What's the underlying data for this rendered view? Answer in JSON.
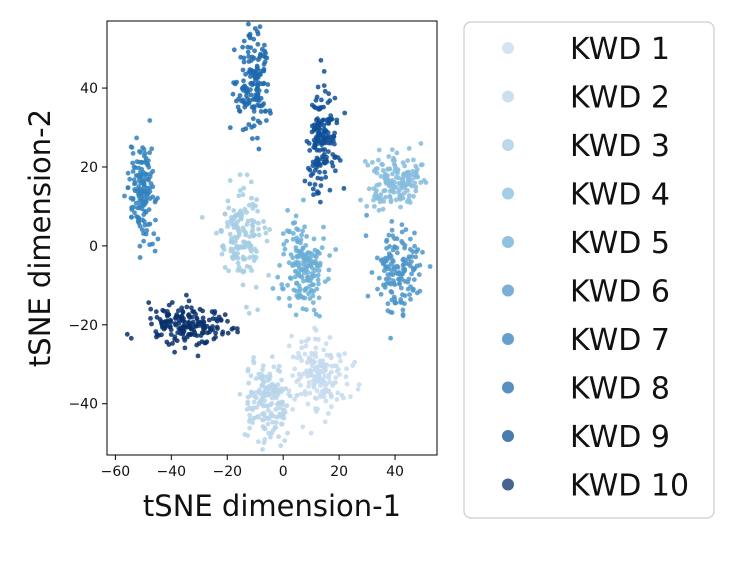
{
  "chart_data": {
    "type": "scatter",
    "title": "",
    "xlabel": "tSNE dimension-1",
    "ylabel": "tSNE dimension-2",
    "xlim": [
      -63,
      55
    ],
    "ylim": [
      -53,
      57
    ],
    "xticks": [
      -60,
      -40,
      -20,
      0,
      20,
      40
    ],
    "yticks": [
      -40,
      -20,
      0,
      20,
      40
    ],
    "legend_position": "right",
    "series": [
      {
        "name": "KWD 1",
        "color": "#c6dbef",
        "clusters": [
          {
            "cx": 13,
            "cy": -32,
            "sx": 5,
            "sy": 5,
            "n": 170
          }
        ]
      },
      {
        "name": "KWD 2",
        "color": "#b8d5ea",
        "clusters": [
          {
            "cx": -6,
            "cy": -40,
            "sx": 4,
            "sy": 5,
            "n": 170
          }
        ]
      },
      {
        "name": "KWD 3",
        "color": "#a5cce3",
        "clusters": [
          {
            "cx": -15,
            "cy": 3,
            "sx": 4,
            "sy": 6,
            "n": 150
          }
        ]
      },
      {
        "name": "KWD 4",
        "color": "#86bcdd",
        "clusters": [
          {
            "cx": 40,
            "cy": 17,
            "sx": 5,
            "sy": 3.5,
            "n": 160
          }
        ]
      },
      {
        "name": "KWD 5",
        "color": "#6aaed6",
        "clusters": [
          {
            "cx": 7,
            "cy": -6,
            "sx": 4,
            "sy": 6,
            "n": 170
          }
        ]
      },
      {
        "name": "KWD 6",
        "color": "#4d95c9",
        "clusters": [
          {
            "cx": 41,
            "cy": -6,
            "sx": 4,
            "sy": 6,
            "n": 150
          }
        ]
      },
      {
        "name": "KWD 7",
        "color": "#3282be",
        "clusters": [
          {
            "cx": -50,
            "cy": 13,
            "sx": 2.5,
            "sy": 6,
            "n": 150
          }
        ]
      },
      {
        "name": "KWD 8",
        "color": "#1f6aaf",
        "clusters": [
          {
            "cx": -11,
            "cy": 42,
            "sx": 3,
            "sy": 6,
            "n": 160
          }
        ]
      },
      {
        "name": "KWD 9",
        "color": "#0e4f96",
        "clusters": [
          {
            "cx": 14,
            "cy": 27,
            "sx": 3,
            "sy": 6,
            "n": 160
          }
        ]
      },
      {
        "name": "KWD 10",
        "color": "#08306b",
        "clusters": [
          {
            "cx": -35,
            "cy": -20,
            "sx": 7,
            "sy": 2.5,
            "n": 180
          }
        ]
      }
    ]
  }
}
